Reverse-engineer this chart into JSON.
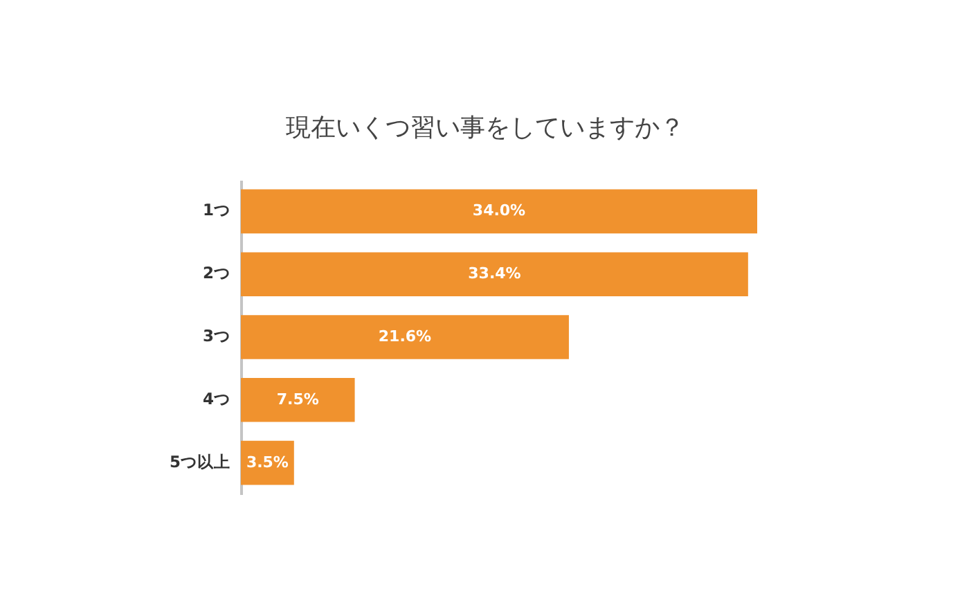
{
  "chart_data": {
    "type": "bar",
    "orientation": "horizontal",
    "title": "現在いくつ習い事をしていますか？",
    "categories": [
      "1つ",
      "2つ",
      "3つ",
      "4つ",
      "5つ以上"
    ],
    "values": [
      34.0,
      33.4,
      21.6,
      7.5,
      3.5
    ],
    "value_labels": [
      "34.0%",
      "33.4%",
      "21.6%",
      "7.5%",
      "3.5%"
    ],
    "color": "#f0922e"
  }
}
